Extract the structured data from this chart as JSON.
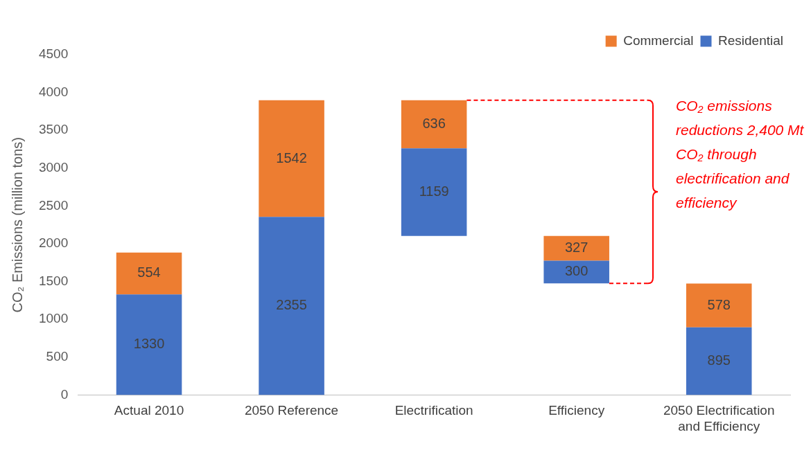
{
  "chart_data": {
    "type": "bar",
    "ylabel": "CO₂ Emissions (million tons)",
    "categories": [
      "Actual 2010",
      "2050 Reference",
      "Electrification",
      "Efficiency",
      "2050 Electrification and Efficiency"
    ],
    "series": [
      {
        "name": "Residential",
        "color": "#4472c4",
        "base": [
          0,
          0,
          2102,
          1475,
          0
        ],
        "values": [
          1330,
          2355,
          1159,
          300,
          895
        ]
      },
      {
        "name": "Commercial",
        "color": "#ed7d31",
        "base": [
          1330,
          2355,
          3261,
          1775,
          895
        ],
        "values": [
          554,
          1542,
          636,
          327,
          578
        ]
      }
    ],
    "ylim": [
      0,
      4500
    ],
    "yticks": [
      0,
      500,
      1000,
      1500,
      2000,
      2500,
      3000,
      3500,
      4000,
      4500
    ],
    "grid": false,
    "legend": "top right",
    "data_labels": true,
    "annotations": [
      "CO₂ emissions reductions 2,400 Mt CO₂ through electrification and efficiency"
    ]
  }
}
